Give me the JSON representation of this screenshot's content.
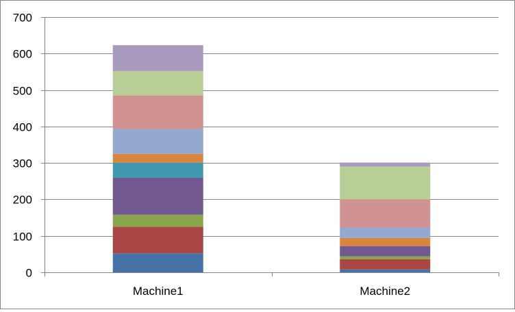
{
  "chart_data": {
    "type": "bar",
    "stacked": true,
    "categories": [
      "Machine1",
      "Machine2"
    ],
    "series": [
      {
        "color": "#4572a7",
        "values": [
          52,
          8
        ]
      },
      {
        "color": "#aa4643",
        "values": [
          73,
          28
        ]
      },
      {
        "color": "#89a54e",
        "values": [
          33,
          8
        ]
      },
      {
        "color": "#71588f",
        "values": [
          101,
          28
        ]
      },
      {
        "color": "#4198af",
        "values": [
          42,
          0
        ]
      },
      {
        "color": "#db843d",
        "values": [
          24,
          22
        ]
      },
      {
        "color": "#93a9cf",
        "values": [
          68,
          29
        ]
      },
      {
        "color": "#d19392",
        "values": [
          92,
          77
        ]
      },
      {
        "color": "#b9cd96",
        "values": [
          67,
          90
        ]
      },
      {
        "color": "#a99bbd",
        "values": [
          71,
          11
        ]
      }
    ],
    "yticks": [
      "0",
      "100",
      "200",
      "300",
      "400",
      "500",
      "600",
      "700"
    ],
    "ylim": [
      0,
      700
    ],
    "title": "",
    "xlabel": "",
    "ylabel": "",
    "grid": true,
    "legend": "none"
  }
}
